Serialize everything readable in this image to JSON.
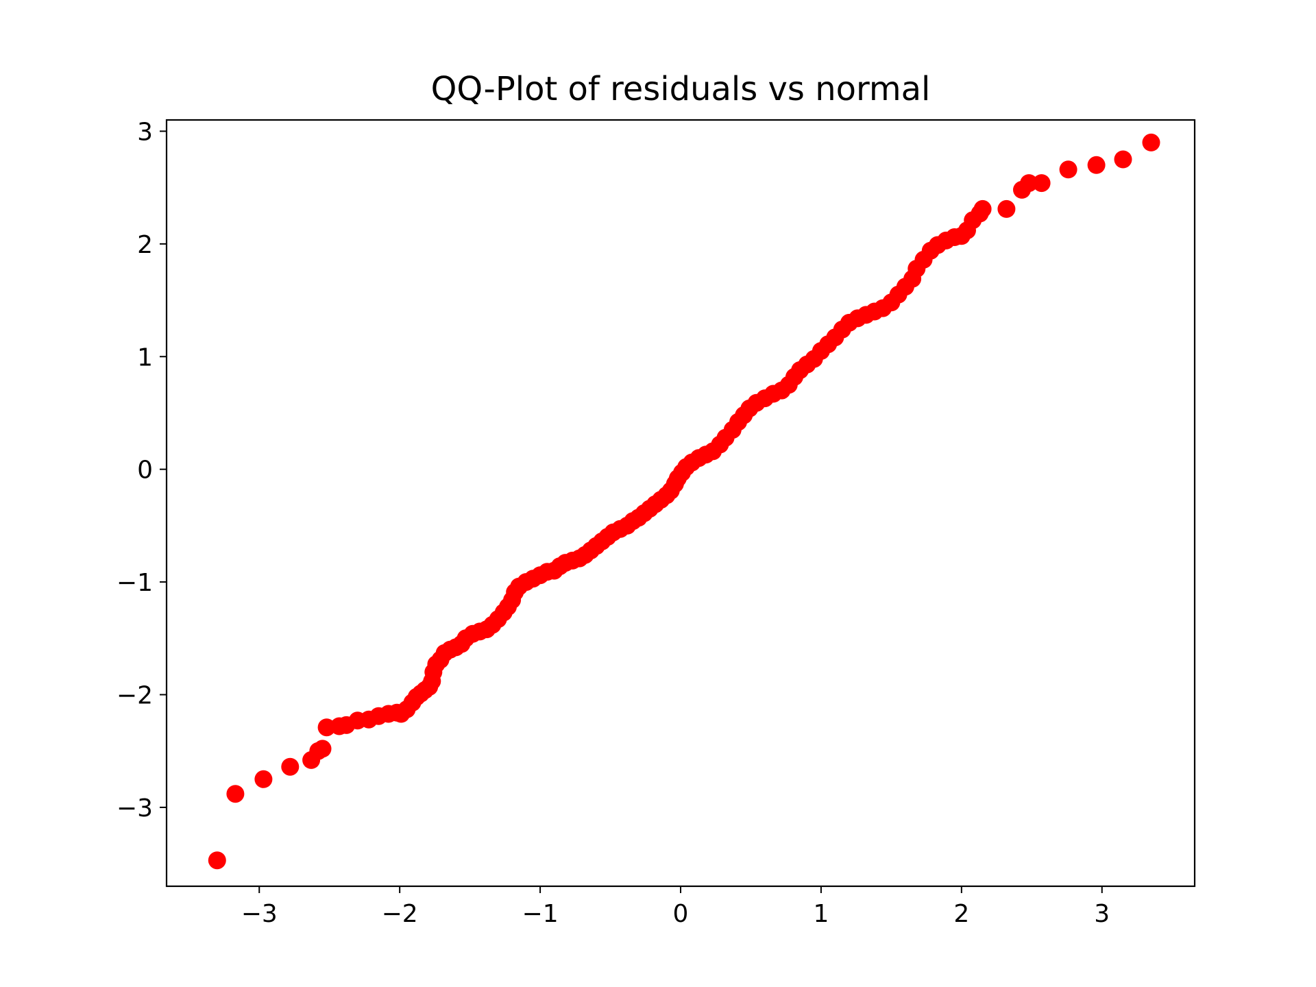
{
  "chart_data": {
    "type": "scatter",
    "title": "QQ-Plot of residuals vs normal",
    "xlabel": "",
    "ylabel": "",
    "xlim": [
      -3.66,
      3.66
    ],
    "ylim": [
      -3.7,
      3.1
    ],
    "x_ticks": [
      -3,
      -2,
      -1,
      0,
      1,
      2,
      3
    ],
    "y_ticks": [
      -3,
      -2,
      -1,
      0,
      1,
      2,
      3
    ],
    "x_tick_labels": [
      "−3",
      "−2",
      "−1",
      "0",
      "1",
      "2",
      "3"
    ],
    "y_tick_labels": [
      "−3",
      "−2",
      "−1",
      "0",
      "1",
      "2",
      "3"
    ],
    "grid": false,
    "marker_color": "#ff0000",
    "series": [
      {
        "points": [
          [
            -3.3,
            -3.47
          ],
          [
            -3.17,
            -2.88
          ],
          [
            -2.97,
            -2.75
          ],
          [
            -2.78,
            -2.64
          ],
          [
            -2.63,
            -2.58
          ],
          [
            -2.58,
            -2.5
          ],
          [
            -2.55,
            -2.48
          ],
          [
            -2.52,
            -2.29
          ],
          [
            -2.43,
            -2.28
          ],
          [
            -2.38,
            -2.27
          ],
          [
            -2.3,
            -2.23
          ],
          [
            -2.22,
            -2.22
          ],
          [
            -2.15,
            -2.19
          ],
          [
            -2.08,
            -2.17
          ],
          [
            -2.02,
            -2.16
          ],
          [
            -1.99,
            -2.17
          ],
          [
            -1.95,
            -2.13
          ],
          [
            -1.91,
            -2.07
          ],
          [
            -1.88,
            -2.02
          ],
          [
            -1.85,
            -1.99
          ],
          [
            -1.82,
            -1.96
          ],
          [
            -1.79,
            -1.93
          ],
          [
            -1.77,
            -1.88
          ],
          [
            -1.76,
            -1.8
          ],
          [
            -1.74,
            -1.73
          ],
          [
            -1.71,
            -1.69
          ],
          [
            -1.68,
            -1.63
          ],
          [
            -1.64,
            -1.6
          ],
          [
            -1.6,
            -1.58
          ],
          [
            -1.56,
            -1.55
          ],
          [
            -1.53,
            -1.5
          ],
          [
            -1.48,
            -1.46
          ],
          [
            -1.43,
            -1.44
          ],
          [
            -1.38,
            -1.42
          ],
          [
            -1.34,
            -1.38
          ],
          [
            -1.3,
            -1.33
          ],
          [
            -1.26,
            -1.27
          ],
          [
            -1.23,
            -1.22
          ],
          [
            -1.2,
            -1.16
          ],
          [
            -1.18,
            -1.09
          ],
          [
            -1.15,
            -1.04
          ],
          [
            -1.1,
            -1.0
          ],
          [
            -1.05,
            -0.97
          ],
          [
            -1.0,
            -0.94
          ],
          [
            -0.95,
            -0.91
          ],
          [
            -0.9,
            -0.9
          ],
          [
            -0.86,
            -0.86
          ],
          [
            -0.82,
            -0.83
          ],
          [
            -0.77,
            -0.81
          ],
          [
            -0.72,
            -0.79
          ],
          [
            -0.68,
            -0.76
          ],
          [
            -0.64,
            -0.72
          ],
          [
            -0.6,
            -0.68
          ],
          [
            -0.56,
            -0.64
          ],
          [
            -0.52,
            -0.6
          ],
          [
            -0.48,
            -0.56
          ],
          [
            -0.43,
            -0.53
          ],
          [
            -0.38,
            -0.5
          ],
          [
            -0.34,
            -0.46
          ],
          [
            -0.3,
            -0.43
          ],
          [
            -0.26,
            -0.39
          ],
          [
            -0.22,
            -0.35
          ],
          [
            -0.18,
            -0.31
          ],
          [
            -0.14,
            -0.27
          ],
          [
            -0.1,
            -0.23
          ],
          [
            -0.07,
            -0.19
          ],
          [
            -0.04,
            -0.13
          ],
          [
            -0.02,
            -0.08
          ],
          [
            0.01,
            -0.03
          ],
          [
            0.04,
            0.02
          ],
          [
            0.08,
            0.06
          ],
          [
            0.13,
            0.1
          ],
          [
            0.18,
            0.13
          ],
          [
            0.23,
            0.16
          ],
          [
            0.28,
            0.22
          ],
          [
            0.32,
            0.28
          ],
          [
            0.37,
            0.35
          ],
          [
            0.41,
            0.42
          ],
          [
            0.45,
            0.48
          ],
          [
            0.49,
            0.54
          ],
          [
            0.54,
            0.59
          ],
          [
            0.6,
            0.63
          ],
          [
            0.66,
            0.67
          ],
          [
            0.72,
            0.7
          ],
          [
            0.77,
            0.75
          ],
          [
            0.81,
            0.82
          ],
          [
            0.85,
            0.88
          ],
          [
            0.9,
            0.93
          ],
          [
            0.95,
            0.98
          ],
          [
            1.0,
            1.05
          ],
          [
            1.05,
            1.11
          ],
          [
            1.1,
            1.17
          ],
          [
            1.15,
            1.24
          ],
          [
            1.2,
            1.3
          ],
          [
            1.26,
            1.34
          ],
          [
            1.32,
            1.37
          ],
          [
            1.38,
            1.4
          ],
          [
            1.44,
            1.43
          ],
          [
            1.5,
            1.48
          ],
          [
            1.55,
            1.55
          ],
          [
            1.6,
            1.62
          ],
          [
            1.65,
            1.69
          ],
          [
            1.68,
            1.78
          ],
          [
            1.73,
            1.86
          ],
          [
            1.78,
            1.94
          ],
          [
            1.83,
            1.99
          ],
          [
            1.89,
            2.03
          ],
          [
            1.95,
            2.06
          ],
          [
            2.0,
            2.07
          ],
          [
            2.04,
            2.12
          ],
          [
            2.08,
            2.21
          ],
          [
            2.13,
            2.27
          ],
          [
            2.15,
            2.31
          ],
          [
            2.32,
            2.31
          ],
          [
            2.43,
            2.48
          ],
          [
            2.48,
            2.54
          ],
          [
            2.57,
            2.54
          ],
          [
            2.76,
            2.66
          ],
          [
            2.96,
            2.7
          ],
          [
            3.15,
            2.75
          ],
          [
            3.35,
            2.9
          ]
        ]
      }
    ]
  }
}
